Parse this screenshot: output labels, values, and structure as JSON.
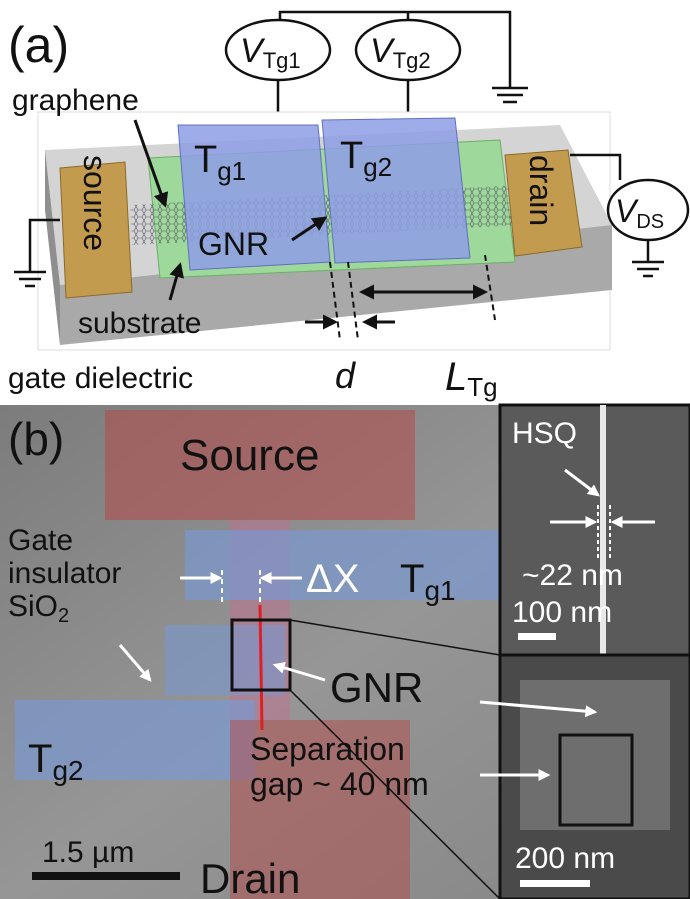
{
  "panel_a": {
    "label": "(a)",
    "voltage_sources": [
      {
        "symbol": "V",
        "subscript": "Tg1"
      },
      {
        "symbol": "V",
        "subscript": "Tg2"
      },
      {
        "symbol": "V",
        "subscript": "DS"
      }
    ],
    "gates": [
      {
        "symbol": "T",
        "subscript": "g1"
      },
      {
        "symbol": "T",
        "subscript": "g2"
      }
    ],
    "source": "source",
    "drain": "drain",
    "graphene": "graphene",
    "gnr": "GNR",
    "substrate": "substrate",
    "gate_dielectric": "gate dielectric",
    "d": "d",
    "gate_length": {
      "symbol": "L",
      "subscript": "Tg"
    }
  },
  "panel_b": {
    "label": "(b)",
    "source": "Source",
    "drain": "Drain",
    "gate_insulator": [
      "Gate",
      "insulator",
      {
        "symbol": "SiO",
        "subscript": "2"
      }
    ],
    "gates": [
      {
        "symbol": "T",
        "subscript": "g1"
      },
      {
        "symbol": "T",
        "subscript": "g2"
      }
    ],
    "delta_x": "ΔX",
    "gnr": "GNR",
    "separation_gap": [
      "Separation",
      "gap ~ 40 nm"
    ],
    "scale_bar": "1.5 µm",
    "inset_top": {
      "hsq": "HSQ",
      "width": "~22 nm",
      "scale_bar": "100 nm"
    },
    "inset_bottom": {
      "scale_bar": "200 nm"
    }
  }
}
